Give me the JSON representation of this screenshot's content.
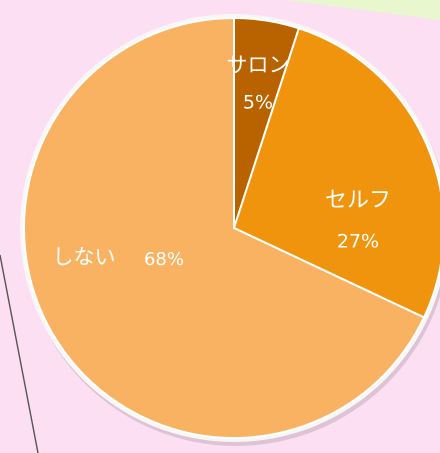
{
  "colors": {
    "background_page": "#fcdff2",
    "background_green": "#e9f7cf",
    "paper_border": "#555555",
    "pie_outline": "#f7f7f7"
  },
  "chart_data": {
    "type": "pie",
    "title": "",
    "start_angle_deg": 0,
    "direction": "clockwise",
    "slices": [
      {
        "label": "サロン",
        "percent_text": "5%",
        "value": 5,
        "color": "#b86200"
      },
      {
        "label": "セルフ",
        "percent_text": "27%",
        "value": 27,
        "color": "#f0930d"
      },
      {
        "label": "しない",
        "percent_text": "68%",
        "value": 68,
        "color": "#f9b262"
      }
    ]
  }
}
